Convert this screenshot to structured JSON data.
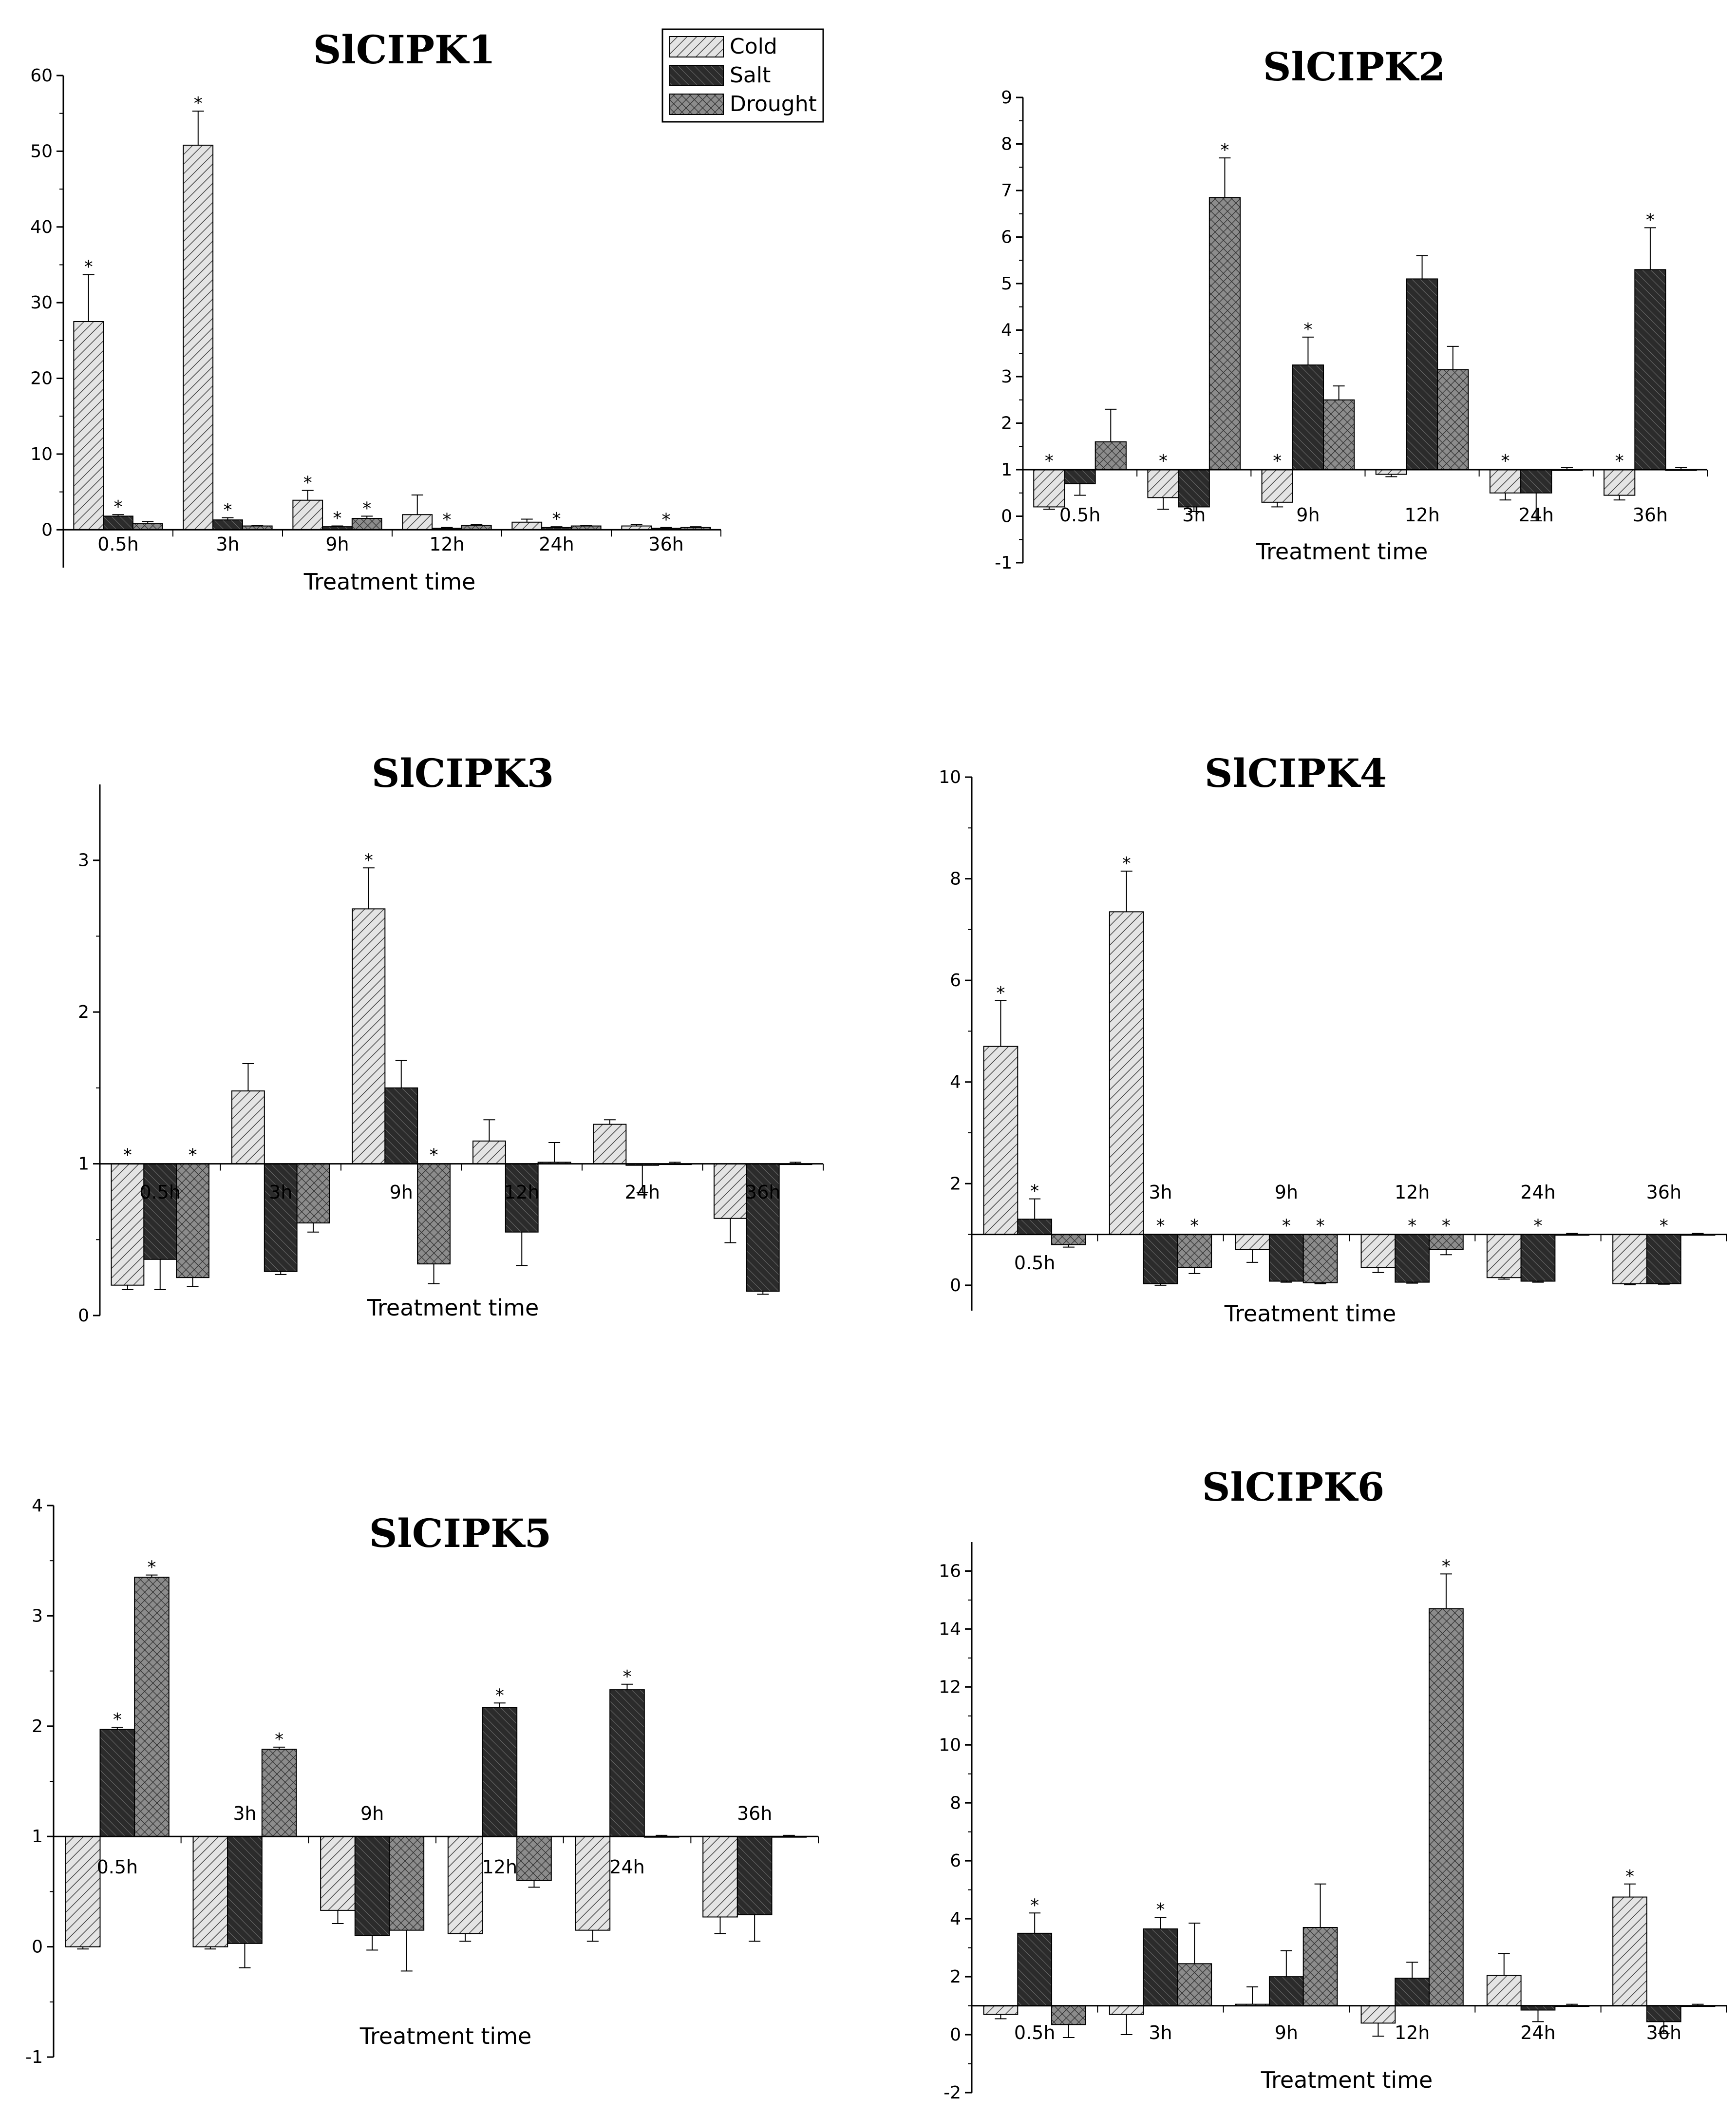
{
  "legend": {
    "series": [
      "Cold",
      "Salt",
      "Drought"
    ]
  },
  "chart_data": [
    {
      "type": "bar",
      "title": "SlCIPK1",
      "xlabel": "Treatment time",
      "ylabel": "",
      "baseline": 0,
      "ylim": [
        -5,
        60
      ],
      "yticks": [
        0,
        10,
        20,
        30,
        40,
        50,
        60
      ],
      "categories": [
        "0.5h",
        "3h",
        "9h",
        "12h",
        "24h",
        "36h"
      ],
      "series": [
        {
          "name": "Cold",
          "values": [
            27.5,
            50.8,
            3.9,
            2.0,
            1.0,
            0.5
          ],
          "errors": [
            6.2,
            4.5,
            1.3,
            2.6,
            0.4,
            0.2
          ],
          "sig": [
            true,
            true,
            true,
            false,
            false,
            false
          ]
        },
        {
          "name": "Salt",
          "values": [
            1.8,
            1.3,
            0.4,
            0.2,
            0.3,
            0.2
          ],
          "errors": [
            0.2,
            0.3,
            0.1,
            0.1,
            0.1,
            0.1
          ],
          "sig": [
            true,
            true,
            true,
            true,
            true,
            true
          ]
        },
        {
          "name": "Drought",
          "values": [
            0.8,
            0.5,
            1.5,
            0.6,
            0.5,
            0.3
          ],
          "errors": [
            0.3,
            0.1,
            0.3,
            0.1,
            0.1,
            0.1
          ],
          "sig": [
            false,
            false,
            true,
            false,
            false,
            false
          ]
        }
      ]
    },
    {
      "type": "bar",
      "title": "SlCIPK2",
      "xlabel": "Treatment time",
      "ylabel": "",
      "baseline": 1,
      "ylim": [
        -1,
        9
      ],
      "yticks": [
        -1,
        0,
        1,
        2,
        3,
        4,
        5,
        6,
        7,
        8,
        9
      ],
      "categories": [
        "0.5h",
        "3h",
        "9h",
        "12h",
        "24h",
        "36h"
      ],
      "series": [
        {
          "name": "Cold",
          "values": [
            0.2,
            0.4,
            0.3,
            0.9,
            0.5,
            0.45
          ],
          "errors": [
            0.05,
            0.25,
            0.1,
            0.05,
            0.15,
            0.1
          ],
          "sig": [
            true,
            true,
            true,
            false,
            true,
            true
          ]
        },
        {
          "name": "Salt",
          "values": [
            0.7,
            0.2,
            3.25,
            5.1,
            0.5,
            5.3
          ],
          "errors": [
            0.25,
            0.1,
            0.6,
            0.5,
            0.6,
            0.9
          ],
          "sig": [
            false,
            false,
            true,
            false,
            false,
            true
          ]
        },
        {
          "name": "Drought",
          "values": [
            1.6,
            6.85,
            2.5,
            3.15,
            1.0,
            1.0
          ],
          "errors": [
            0.7,
            0.85,
            0.3,
            0.5,
            0.05,
            0.05
          ],
          "sig": [
            false,
            true,
            false,
            false,
            false,
            false
          ]
        }
      ]
    },
    {
      "type": "bar",
      "title": "SlCIPK3",
      "xlabel": "Treatment time",
      "ylabel": "",
      "baseline": 1,
      "ylim": [
        0,
        3.5
      ],
      "yticks": [
        0,
        1,
        2,
        3
      ],
      "categories": [
        "0.5h",
        "3h",
        "9h",
        "12h",
        "24h",
        "36h"
      ],
      "series": [
        {
          "name": "Cold",
          "values": [
            0.2,
            1.48,
            2.68,
            1.15,
            1.26,
            0.64
          ],
          "errors": [
            0.03,
            0.18,
            0.27,
            0.14,
            0.03,
            0.16
          ],
          "sig": [
            true,
            false,
            true,
            false,
            false,
            false
          ]
        },
        {
          "name": "Salt",
          "values": [
            0.37,
            0.29,
            1.5,
            0.55,
            0.99,
            0.16
          ],
          "errors": [
            0.2,
            0.02,
            0.18,
            0.22,
            0.18,
            0.02
          ],
          "sig": [
            false,
            false,
            false,
            false,
            false,
            false
          ]
        },
        {
          "name": "Drought",
          "values": [
            0.25,
            0.61,
            0.34,
            1.01,
            1.0,
            1.0
          ],
          "errors": [
            0.06,
            0.06,
            0.13,
            0.13,
            0.01,
            0.01
          ],
          "sig": [
            true,
            false,
            true,
            false,
            false,
            false
          ]
        }
      ]
    },
    {
      "type": "bar",
      "title": "SlCIPK4",
      "xlabel": "Treatment time",
      "ylabel": "",
      "baseline": 1,
      "ylim": [
        -0.5,
        10
      ],
      "yticks": [
        0,
        2,
        4,
        6,
        8,
        10
      ],
      "categories": [
        "0.5h",
        "3h",
        "9h",
        "12h",
        "24h",
        "36h"
      ],
      "series": [
        {
          "name": "Cold",
          "values": [
            4.7,
            7.35,
            0.7,
            0.35,
            0.15,
            0.03
          ],
          "errors": [
            0.9,
            0.8,
            0.25,
            0.1,
            0.03,
            0.02
          ],
          "sig": [
            true,
            true,
            false,
            false,
            false,
            false
          ]
        },
        {
          "name": "Salt",
          "values": [
            1.3,
            0.03,
            0.08,
            0.06,
            0.08,
            0.03
          ],
          "errors": [
            0.4,
            0.03,
            0.02,
            0.02,
            0.02,
            0.01
          ],
          "sig": [
            true,
            true,
            true,
            true,
            true,
            true
          ]
        },
        {
          "name": "Drought",
          "values": [
            0.8,
            0.35,
            0.05,
            0.7,
            1.0,
            1.0
          ],
          "errors": [
            0.05,
            0.12,
            0.02,
            0.1,
            0.02,
            0.02
          ],
          "sig": [
            false,
            true,
            true,
            true,
            false,
            false
          ]
        }
      ]
    },
    {
      "type": "bar",
      "title": "SlCIPK5",
      "xlabel": "Treatment time",
      "ylabel": "",
      "baseline": 1,
      "ylim": [
        -1,
        4
      ],
      "yticks": [
        -1,
        0,
        1,
        2,
        3,
        4
      ],
      "categories": [
        "0.5h",
        "3h",
        "9h",
        "12h",
        "24h",
        "36h"
      ],
      "series": [
        {
          "name": "Cold",
          "values": [
            0.0,
            0.0,
            0.33,
            0.12,
            0.15,
            0.27
          ],
          "errors": [
            0.02,
            0.02,
            0.12,
            0.07,
            0.1,
            0.15
          ],
          "sig": [
            false,
            false,
            false,
            false,
            false,
            false
          ]
        },
        {
          "name": "Salt",
          "values": [
            1.97,
            0.03,
            0.1,
            2.17,
            2.33,
            0.29
          ],
          "errors": [
            0.02,
            0.22,
            0.13,
            0.04,
            0.05,
            0.24
          ],
          "sig": [
            true,
            false,
            false,
            true,
            true,
            false
          ]
        },
        {
          "name": "Drought",
          "values": [
            3.35,
            1.79,
            0.15,
            0.6,
            1.0,
            1.0
          ],
          "errors": [
            0.02,
            0.02,
            0.37,
            0.06,
            0.01,
            0.01
          ],
          "sig": [
            true,
            true,
            false,
            false,
            false,
            false
          ]
        }
      ]
    },
    {
      "type": "bar",
      "title": "SlCIPK6",
      "xlabel": "Treatment time",
      "ylabel": "",
      "baseline": 1,
      "ylim": [
        -2,
        17
      ],
      "yticks": [
        -2,
        0,
        2,
        4,
        6,
        8,
        10,
        12,
        14,
        16
      ],
      "categories": [
        "0.5h",
        "3h",
        "9h",
        "12h",
        "24h",
        "36h"
      ],
      "series": [
        {
          "name": "Cold",
          "values": [
            0.7,
            0.7,
            1.05,
            0.4,
            2.05,
            4.75
          ],
          "errors": [
            0.15,
            0.7,
            0.6,
            0.45,
            0.75,
            0.45
          ],
          "sig": [
            false,
            false,
            false,
            false,
            false,
            true
          ]
        },
        {
          "name": "Salt",
          "values": [
            3.5,
            3.65,
            2.0,
            1.95,
            0.85,
            0.45
          ],
          "errors": [
            0.7,
            0.4,
            0.9,
            0.55,
            0.4,
            0.4
          ],
          "sig": [
            true,
            true,
            false,
            false,
            false,
            false
          ]
        },
        {
          "name": "Drought",
          "values": [
            0.35,
            2.45,
            3.7,
            14.7,
            1.0,
            1.0
          ],
          "errors": [
            0.45,
            1.4,
            1.5,
            1.2,
            0.05,
            0.05
          ],
          "sig": [
            false,
            false,
            false,
            true,
            false,
            false
          ]
        }
      ]
    }
  ]
}
